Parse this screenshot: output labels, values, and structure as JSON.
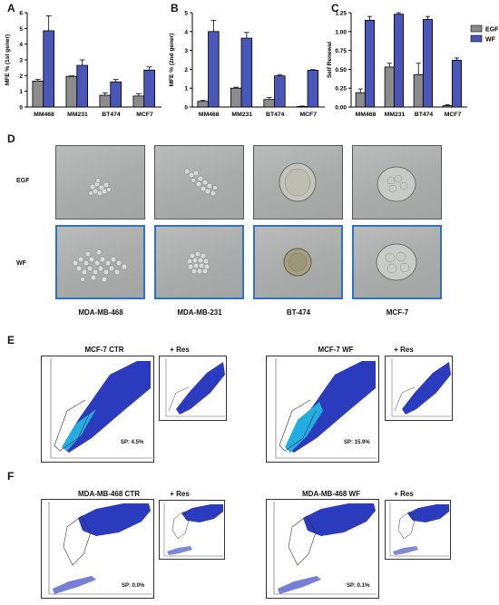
{
  "panels": {
    "A": "A",
    "B": "B",
    "C": "C",
    "D": "D",
    "E": "E",
    "F": "F"
  },
  "legend": {
    "egf": "EGF",
    "wf": "WF",
    "egf_color": "#8c8c8c",
    "wf_color": "#4a56b8"
  },
  "chart_data": [
    {
      "panel": "A",
      "type": "bar",
      "ylabel": "MFE % (1st gener)",
      "ylim": [
        0,
        6
      ],
      "yticks": [
        0,
        1,
        2,
        3,
        4,
        5,
        6
      ],
      "categories": [
        "MM468",
        "MM231",
        "BT474",
        "MCF7"
      ],
      "series": [
        {
          "name": "EGF",
          "values": [
            1.65,
            1.95,
            0.75,
            0.7
          ],
          "errors": [
            0.1,
            0.03,
            0.15,
            0.15
          ]
        },
        {
          "name": "WF",
          "values": [
            4.85,
            2.65,
            1.6,
            2.35
          ],
          "errors": [
            0.95,
            0.35,
            0.15,
            0.2
          ]
        }
      ]
    },
    {
      "panel": "B",
      "type": "bar",
      "ylabel": "MFE % (2nd gener)",
      "ylim": [
        0,
        5
      ],
      "yticks": [
        0,
        1,
        2,
        3,
        4,
        5
      ],
      "categories": [
        "MM468",
        "MM231",
        "BT474",
        "MCF7"
      ],
      "series": [
        {
          "name": "EGF",
          "values": [
            0.3,
            1.0,
            0.4,
            0.03
          ],
          "errors": [
            0.05,
            0.05,
            0.1,
            0.02
          ]
        },
        {
          "name": "WF",
          "values": [
            4.0,
            3.65,
            1.65,
            1.95
          ],
          "errors": [
            0.6,
            0.3,
            0.05,
            0.03
          ]
        }
      ]
    },
    {
      "panel": "C",
      "type": "bar",
      "ylabel": "Self Renewal",
      "ylim": [
        0,
        1.25
      ],
      "yticks": [
        "0.00",
        "0.25",
        "0.50",
        "0.75",
        "1.00",
        "1.25"
      ],
      "ytick_values": [
        0,
        0.25,
        0.5,
        0.75,
        1.0,
        1.25
      ],
      "categories": [
        "MM468",
        "MM231",
        "BT474",
        "MCF7"
      ],
      "series": [
        {
          "name": "EGF",
          "values": [
            0.19,
            0.53,
            0.43,
            0.02
          ],
          "errors": [
            0.05,
            0.05,
            0.15,
            0.01
          ]
        },
        {
          "name": "WF",
          "values": [
            1.15,
            1.23,
            1.16,
            0.62
          ],
          "errors": [
            0.05,
            0.02,
            0.04,
            0.03
          ]
        }
      ]
    }
  ],
  "micrographs": {
    "row_egf": "EGF",
    "row_wf": "WF",
    "cells": [
      "MDA-MB-468",
      "MDA-MB-231",
      "BT-474",
      "MCF-7"
    ]
  },
  "flow": {
    "E": [
      {
        "title": "MCF-7 CTR",
        "sp": "SP: 4.5%",
        "res": "+ Res"
      },
      {
        "title": "MCF-7 WF",
        "sp": "SP: 15.9%",
        "res": "+ Res"
      }
    ],
    "F": [
      {
        "title": "MDA-MB-468 CTR",
        "sp": "SP: 0.0%",
        "res": "+ Res"
      },
      {
        "title": "MDA-MB-468 WF",
        "sp": "SP: 0.1%",
        "res": "+ Res"
      }
    ]
  }
}
